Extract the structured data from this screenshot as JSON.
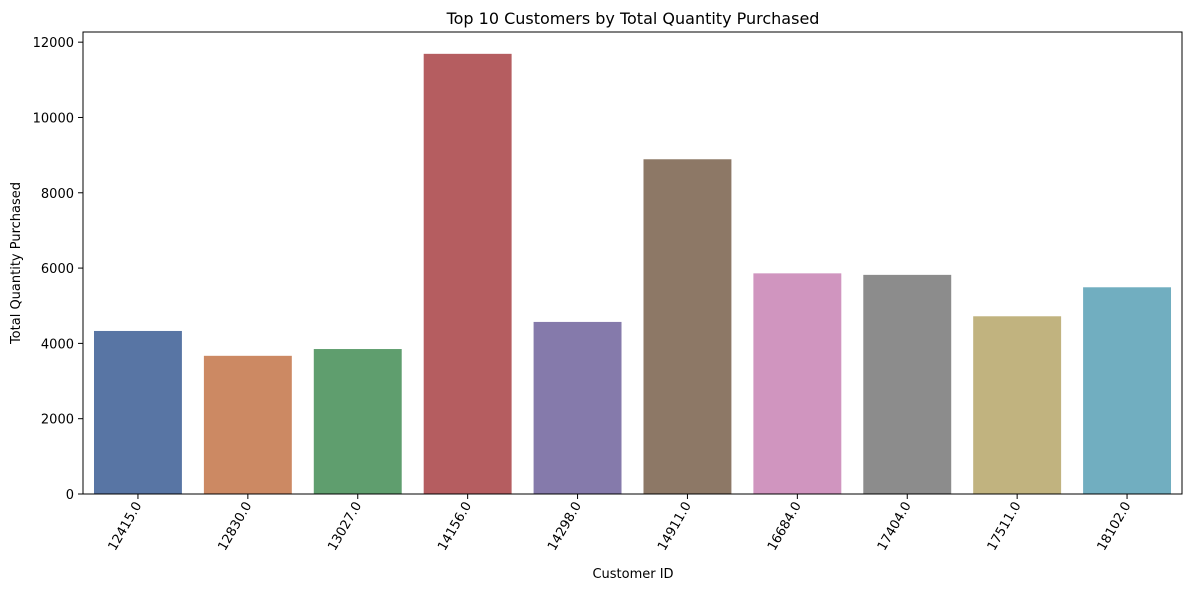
{
  "chart_data": {
    "type": "bar",
    "title": "Top 10 Customers by Total Quantity Purchased",
    "xlabel": "Customer ID",
    "ylabel": "Total Quantity Purchased",
    "categories": [
      "12415.0",
      "12830.0",
      "13027.0",
      "14156.0",
      "14298.0",
      "14911.0",
      "16684.0",
      "17404.0",
      "17511.0",
      "18102.0"
    ],
    "values": [
      4330,
      3670,
      3850,
      11690,
      4570,
      8890,
      5860,
      5820,
      4720,
      5490
    ],
    "colors": [
      "#5875a4",
      "#cc8963",
      "#5f9e6e",
      "#b55d60",
      "#857aab",
      "#8d7866",
      "#d095bf",
      "#8c8c8c",
      "#c1b37f",
      "#71aec0"
    ],
    "ylim": [
      0,
      12270
    ],
    "yticks": [
      0,
      2000,
      4000,
      6000,
      8000,
      10000,
      12000
    ],
    "grid": false,
    "legend": "none"
  }
}
